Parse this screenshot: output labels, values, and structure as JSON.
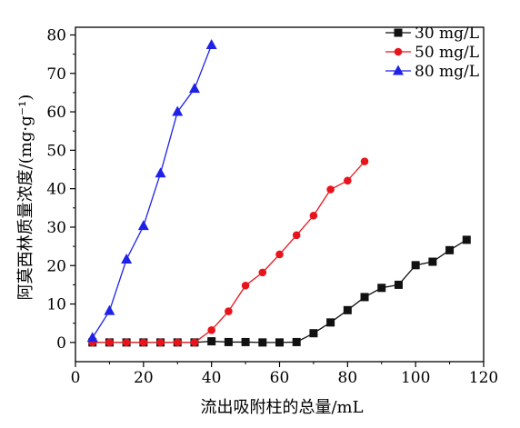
{
  "chart_data": {
    "type": "line",
    "xlabel": "流出吸附柱的总量/mL",
    "ylabel": "阿莫西林质量浓度/(mg·g⁻¹)",
    "xlim": [
      0,
      120
    ],
    "ylim": [
      -5,
      82
    ],
    "xticks": [
      0,
      20,
      40,
      60,
      80,
      100,
      120
    ],
    "yticks": [
      0,
      10,
      20,
      30,
      40,
      50,
      60,
      70,
      80
    ],
    "grid": false,
    "legend_position": "top-right",
    "series": [
      {
        "name": "30 mg/L",
        "color": "#111111",
        "marker": "square",
        "x": [
          5,
          10,
          15,
          20,
          25,
          30,
          35,
          40,
          45,
          50,
          55,
          60,
          65,
          70,
          75,
          80,
          85,
          90,
          95,
          100,
          105,
          110,
          115
        ],
        "y": [
          0,
          0,
          0,
          0,
          0,
          0,
          0,
          0.3,
          0.1,
          0.1,
          0,
          0,
          0.1,
          2.4,
          5.2,
          8.4,
          11.8,
          14.2,
          15.0,
          20.1,
          21.0,
          24.0,
          26.7
        ]
      },
      {
        "name": "50 mg/L",
        "color": "#e8141c",
        "marker": "circle",
        "x": [
          5,
          10,
          15,
          20,
          25,
          30,
          35,
          40,
          45,
          50,
          55,
          60,
          65,
          70,
          75,
          80,
          85
        ],
        "y": [
          0,
          0,
          0,
          0,
          0,
          0,
          0,
          3.2,
          8.1,
          14.8,
          18.2,
          22.9,
          27.9,
          33.0,
          39.8,
          42.1,
          47.1
        ]
      },
      {
        "name": "80 mg/L",
        "color": "#1f22e6",
        "marker": "triangle",
        "x": [
          5,
          10,
          15,
          20,
          25,
          30,
          35,
          40
        ],
        "y": [
          1.2,
          8.2,
          21.6,
          30.3,
          44.0,
          60.0,
          66.0,
          77.4
        ]
      }
    ]
  }
}
